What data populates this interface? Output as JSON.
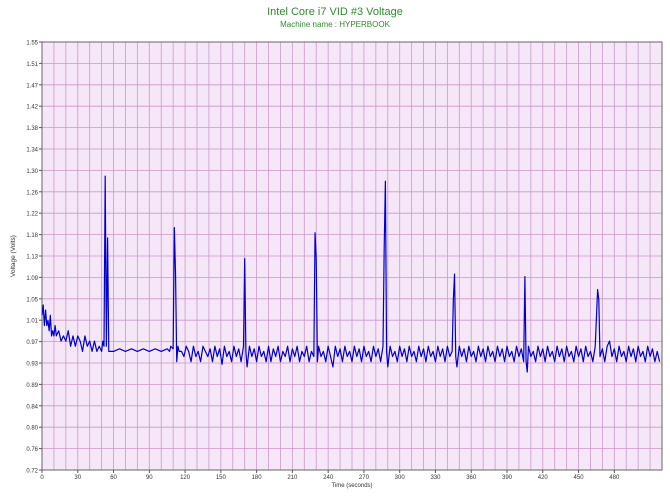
{
  "chart_data": {
    "type": "line",
    "title": "Intel Core i7 VID #3 Voltage",
    "subtitle": "Machine name : HYPERBOOK",
    "xlabel": "Time (seconds)",
    "ylabel": "Voltage (Volts)",
    "xlim": [
      0,
      520
    ],
    "ylim": [
      0.72,
      1.55
    ],
    "grid": true,
    "colors": {
      "plot_background": "#f5e6f8",
      "grid": "#cc99cc",
      "line": "#0000cc",
      "title": "#2e8b2e",
      "axis_text": "#333333"
    },
    "x_ticks": [
      "0",
      "30",
      "60",
      "90",
      "120",
      "150",
      "180",
      "210",
      "240",
      "270",
      "300",
      "330",
      "360",
      "390",
      "420",
      "450",
      "480"
    ],
    "y_ticks": [
      "1.55",
      "1.51",
      "1.47",
      "1.42",
      "1.38",
      "1.34",
      "1.30",
      "1.26",
      "1.22",
      "1.18",
      "1.13",
      "1.09",
      "1.05",
      "1.01",
      "0.97",
      "0.93",
      "0.89",
      "0.84",
      "0.80",
      "0.76",
      "0.72"
    ],
    "series": [
      {
        "points": [
          [
            0,
            1.02
          ],
          [
            1,
            1.04
          ],
          [
            2,
            1.0
          ],
          [
            3,
            1.03
          ],
          [
            4,
            1.0
          ],
          [
            5,
            1.01
          ],
          [
            6,
            0.99
          ],
          [
            7,
            1.02
          ],
          [
            8,
            0.98
          ],
          [
            9,
            0.99
          ],
          [
            10,
            0.98
          ],
          [
            11,
            1.0
          ],
          [
            12,
            0.98
          ],
          [
            14,
            0.99
          ],
          [
            16,
            0.97
          ],
          [
            18,
            0.98
          ],
          [
            20,
            0.97
          ],
          [
            22,
            0.99
          ],
          [
            24,
            0.96
          ],
          [
            26,
            0.98
          ],
          [
            28,
            0.96
          ],
          [
            30,
            0.98
          ],
          [
            32,
            0.97
          ],
          [
            34,
            0.95
          ],
          [
            36,
            0.98
          ],
          [
            38,
            0.96
          ],
          [
            40,
            0.97
          ],
          [
            42,
            0.95
          ],
          [
            44,
            0.97
          ],
          [
            46,
            0.95
          ],
          [
            48,
            0.96
          ],
          [
            50,
            0.95
          ],
          [
            51,
            0.97
          ],
          [
            52,
            0.96
          ],
          [
            53,
            1.29
          ],
          [
            54,
            0.96
          ],
          [
            55,
            1.17
          ],
          [
            56,
            0.95
          ],
          [
            57,
            0.95
          ],
          [
            60,
            0.95
          ],
          [
            65,
            0.955
          ],
          [
            70,
            0.95
          ],
          [
            75,
            0.955
          ],
          [
            80,
            0.95
          ],
          [
            85,
            0.955
          ],
          [
            90,
            0.95
          ],
          [
            95,
            0.955
          ],
          [
            100,
            0.95
          ],
          [
            105,
            0.955
          ],
          [
            107,
            0.95
          ],
          [
            108,
            0.96
          ],
          [
            110,
            0.955
          ],
          [
            111,
            1.19
          ],
          [
            112,
            1.1
          ],
          [
            113,
            0.93
          ],
          [
            114,
            0.96
          ],
          [
            115,
            0.95
          ],
          [
            117,
            0.95
          ],
          [
            119,
            0.94
          ],
          [
            121,
            0.96
          ],
          [
            123,
            0.95
          ],
          [
            125,
            0.93
          ],
          [
            127,
            0.96
          ],
          [
            129,
            0.94
          ],
          [
            131,
            0.95
          ],
          [
            133,
            0.93
          ],
          [
            135,
            0.96
          ],
          [
            137,
            0.95
          ],
          [
            139,
            0.94
          ],
          [
            141,
            0.955
          ],
          [
            143,
            0.93
          ],
          [
            145,
            0.96
          ],
          [
            147,
            0.94
          ],
          [
            149,
            0.955
          ],
          [
            151,
            0.925
          ],
          [
            153,
            0.96
          ],
          [
            155,
            0.94
          ],
          [
            157,
            0.95
          ],
          [
            159,
            0.93
          ],
          [
            161,
            0.96
          ],
          [
            163,
            0.94
          ],
          [
            165,
            0.955
          ],
          [
            167,
            0.93
          ],
          [
            169,
            0.96
          ],
          [
            170,
            1.13
          ],
          [
            171,
            0.95
          ],
          [
            172,
            0.92
          ],
          [
            174,
            0.96
          ],
          [
            176,
            0.94
          ],
          [
            178,
            0.955
          ],
          [
            180,
            0.93
          ],
          [
            182,
            0.96
          ],
          [
            184,
            0.94
          ],
          [
            186,
            0.95
          ],
          [
            188,
            0.93
          ],
          [
            190,
            0.96
          ],
          [
            192,
            0.93
          ],
          [
            194,
            0.955
          ],
          [
            196,
            0.94
          ],
          [
            198,
            0.96
          ],
          [
            200,
            0.93
          ],
          [
            202,
            0.95
          ],
          [
            204,
            0.94
          ],
          [
            206,
            0.96
          ],
          [
            208,
            0.93
          ],
          [
            210,
            0.955
          ],
          [
            212,
            0.94
          ],
          [
            214,
            0.96
          ],
          [
            216,
            0.93
          ],
          [
            218,
            0.95
          ],
          [
            220,
            0.94
          ],
          [
            222,
            0.96
          ],
          [
            224,
            0.93
          ],
          [
            226,
            0.95
          ],
          [
            228,
            0.94
          ],
          [
            229,
            1.18
          ],
          [
            230,
            1.13
          ],
          [
            231,
            0.93
          ],
          [
            232,
            0.96
          ],
          [
            234,
            0.94
          ],
          [
            236,
            0.95
          ],
          [
            238,
            0.93
          ],
          [
            240,
            0.96
          ],
          [
            242,
            0.94
          ],
          [
            244,
            0.92
          ],
          [
            246,
            0.96
          ],
          [
            248,
            0.94
          ],
          [
            250,
            0.955
          ],
          [
            252,
            0.93
          ],
          [
            254,
            0.96
          ],
          [
            256,
            0.94
          ],
          [
            258,
            0.95
          ],
          [
            260,
            0.93
          ],
          [
            262,
            0.96
          ],
          [
            264,
            0.94
          ],
          [
            266,
            0.955
          ],
          [
            268,
            0.93
          ],
          [
            270,
            0.96
          ],
          [
            272,
            0.94
          ],
          [
            274,
            0.95
          ],
          [
            276,
            0.93
          ],
          [
            278,
            0.96
          ],
          [
            280,
            0.94
          ],
          [
            282,
            0.955
          ],
          [
            284,
            0.93
          ],
          [
            286,
            0.96
          ],
          [
            287,
            1.15
          ],
          [
            288,
            1.28
          ],
          [
            289,
            0.95
          ],
          [
            290,
            0.92
          ],
          [
            292,
            0.96
          ],
          [
            294,
            0.94
          ],
          [
            296,
            0.95
          ],
          [
            298,
            0.93
          ],
          [
            300,
            0.96
          ],
          [
            302,
            0.94
          ],
          [
            304,
            0.955
          ],
          [
            306,
            0.93
          ],
          [
            308,
            0.96
          ],
          [
            310,
            0.94
          ],
          [
            312,
            0.95
          ],
          [
            314,
            0.93
          ],
          [
            316,
            0.96
          ],
          [
            318,
            0.94
          ],
          [
            320,
            0.955
          ],
          [
            322,
            0.93
          ],
          [
            324,
            0.96
          ],
          [
            326,
            0.94
          ],
          [
            328,
            0.95
          ],
          [
            330,
            0.93
          ],
          [
            332,
            0.96
          ],
          [
            334,
            0.94
          ],
          [
            336,
            0.955
          ],
          [
            338,
            0.93
          ],
          [
            340,
            0.96
          ],
          [
            342,
            0.94
          ],
          [
            344,
            0.95
          ],
          [
            345,
            1.05
          ],
          [
            346,
            1.1
          ],
          [
            347,
            0.94
          ],
          [
            348,
            0.92
          ],
          [
            350,
            0.96
          ],
          [
            352,
            0.94
          ],
          [
            354,
            0.955
          ],
          [
            356,
            0.93
          ],
          [
            358,
            0.96
          ],
          [
            360,
            0.94
          ],
          [
            362,
            0.95
          ],
          [
            364,
            0.93
          ],
          [
            366,
            0.96
          ],
          [
            368,
            0.94
          ],
          [
            370,
            0.955
          ],
          [
            372,
            0.93
          ],
          [
            374,
            0.96
          ],
          [
            376,
            0.94
          ],
          [
            378,
            0.95
          ],
          [
            380,
            0.93
          ],
          [
            382,
            0.96
          ],
          [
            384,
            0.94
          ],
          [
            386,
            0.955
          ],
          [
            388,
            0.93
          ],
          [
            390,
            0.96
          ],
          [
            392,
            0.94
          ],
          [
            394,
            0.95
          ],
          [
            396,
            0.93
          ],
          [
            398,
            0.96
          ],
          [
            400,
            0.94
          ],
          [
            402,
            0.955
          ],
          [
            404,
            0.93
          ],
          [
            405,
            1.095
          ],
          [
            406,
            0.93
          ],
          [
            407,
            0.91
          ],
          [
            408,
            0.96
          ],
          [
            410,
            0.94
          ],
          [
            412,
            0.95
          ],
          [
            414,
            0.93
          ],
          [
            416,
            0.96
          ],
          [
            418,
            0.94
          ],
          [
            420,
            0.955
          ],
          [
            422,
            0.93
          ],
          [
            424,
            0.96
          ],
          [
            426,
            0.94
          ],
          [
            428,
            0.95
          ],
          [
            430,
            0.93
          ],
          [
            432,
            0.96
          ],
          [
            434,
            0.94
          ],
          [
            436,
            0.955
          ],
          [
            438,
            0.93
          ],
          [
            440,
            0.96
          ],
          [
            442,
            0.94
          ],
          [
            444,
            0.95
          ],
          [
            446,
            0.93
          ],
          [
            448,
            0.96
          ],
          [
            450,
            0.94
          ],
          [
            452,
            0.955
          ],
          [
            454,
            0.93
          ],
          [
            456,
            0.96
          ],
          [
            458,
            0.94
          ],
          [
            460,
            0.95
          ],
          [
            462,
            0.93
          ],
          [
            464,
            0.96
          ],
          [
            466,
            1.07
          ],
          [
            467,
            1.05
          ],
          [
            468,
            0.94
          ],
          [
            470,
            0.955
          ],
          [
            472,
            0.93
          ],
          [
            474,
            0.96
          ],
          [
            476,
            0.97
          ],
          [
            478,
            0.94
          ],
          [
            480,
            0.955
          ],
          [
            482,
            0.93
          ],
          [
            484,
            0.96
          ],
          [
            486,
            0.94
          ],
          [
            488,
            0.95
          ],
          [
            490,
            0.93
          ],
          [
            492,
            0.96
          ],
          [
            494,
            0.94
          ],
          [
            496,
            0.955
          ],
          [
            498,
            0.93
          ],
          [
            500,
            0.96
          ],
          [
            502,
            0.94
          ],
          [
            504,
            0.95
          ],
          [
            506,
            0.93
          ],
          [
            508,
            0.96
          ],
          [
            510,
            0.94
          ],
          [
            512,
            0.955
          ],
          [
            514,
            0.93
          ],
          [
            516,
            0.95
          ],
          [
            518,
            0.93
          ]
        ]
      }
    ]
  }
}
